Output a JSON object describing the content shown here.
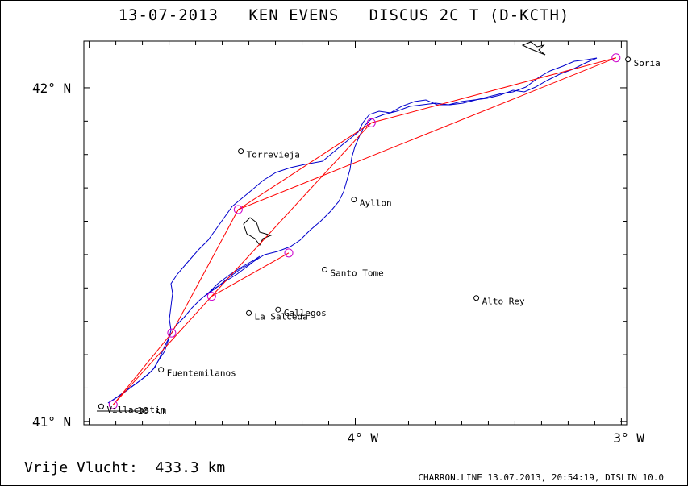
{
  "header": {
    "title": "13-07-2013   KEN EVENS   DISCUS 2C T (D-KCTH)"
  },
  "map": {
    "axes": {
      "lat_ticks": [
        {
          "value": 42,
          "label": "42° N"
        },
        {
          "value": 41,
          "label": "41° N"
        }
      ],
      "lon_ticks": [
        {
          "value": -4,
          "label": "4° W"
        },
        {
          "value": -3,
          "label": "3° W"
        }
      ],
      "lat_range": [
        40.99,
        42.14
      ],
      "lon_range": [
        -5.02,
        -2.98
      ],
      "scale_label": "10 km"
    },
    "places": [
      {
        "name": "Soria",
        "lat": 42.085,
        "lon": -2.975
      },
      {
        "name": "Torrevieja",
        "lat": 41.81,
        "lon": -4.43
      },
      {
        "name": "Ayllon",
        "lat": 41.665,
        "lon": -4.005
      },
      {
        "name": "Santo Tome",
        "lat": 41.455,
        "lon": -4.115
      },
      {
        "name": "Alto Rey",
        "lat": 41.37,
        "lon": -3.545
      },
      {
        "name": "Gallegos",
        "lat": 41.335,
        "lon": -4.29
      },
      {
        "name": "La Salceda",
        "lat": 41.325,
        "lon": -4.4
      },
      {
        "name": "Fuentemilanos",
        "lat": 41.155,
        "lon": -4.73
      },
      {
        "name": "Villacastin",
        "lat": 41.045,
        "lon": -4.955
      }
    ],
    "turnpoints": [
      {
        "lat": 41.05,
        "lon": -4.91
      },
      {
        "lat": 41.265,
        "lon": -4.69
      },
      {
        "lat": 41.635,
        "lon": -4.44
      },
      {
        "lat": 41.895,
        "lon": -3.94
      },
      {
        "lat": 42.09,
        "lon": -3.02
      },
      {
        "lat": 41.505,
        "lon": -4.25
      },
      {
        "lat": 41.375,
        "lon": -4.54
      }
    ],
    "task_legs": [
      [
        0,
        1
      ],
      [
        1,
        2
      ],
      [
        2,
        3
      ],
      [
        3,
        4
      ],
      [
        4,
        2
      ],
      [
        3,
        6
      ],
      [
        6,
        0
      ],
      [
        6,
        5
      ]
    ],
    "colors": {
      "track": "#0000cc",
      "task": "#ff0000",
      "turnpoint": "#cc00cc",
      "frame": "#000000"
    }
  },
  "footer": {
    "distance_label": "Vrije Vlucht:  433.3 km",
    "program_info": "CHARRON.LINE 13.07.2013, 20:54:19, DISLIN 10.0"
  }
}
